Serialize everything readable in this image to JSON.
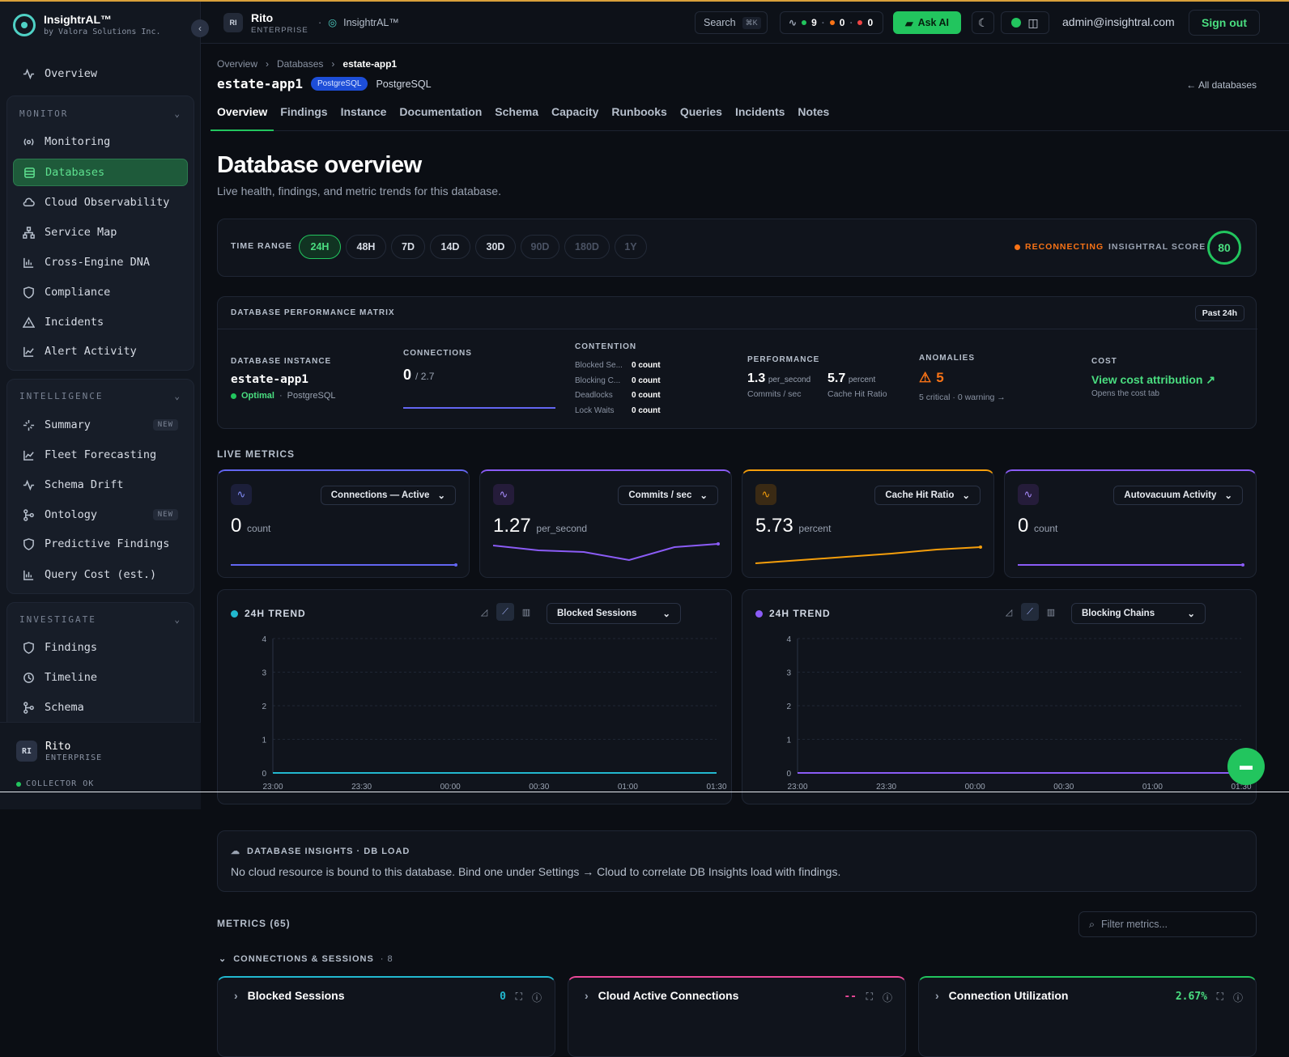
{
  "brand": {
    "name": "InsightrAL™",
    "tagline": "by Valora Solutions Inc."
  },
  "sidebar": {
    "overview": "Overview",
    "monitor": {
      "title": "MONITOR",
      "items": [
        "Monitoring",
        "Databases",
        "Cloud Observability",
        "Service Map",
        "Cross-Engine DNA",
        "Compliance",
        "Incidents",
        "Alert Activity"
      ]
    },
    "intelligence": {
      "title": "INTELLIGENCE",
      "items": [
        "Summary",
        "Fleet Forecasting",
        "Schema Drift",
        "Ontology",
        "Predictive Findings",
        "Query Cost (est.)"
      ],
      "new_badge": "NEW"
    },
    "investigate": {
      "title": "INVESTIGATE",
      "items": [
        "Findings",
        "Timeline",
        "Schema"
      ]
    },
    "user": {
      "initials": "RI",
      "name": "Rito",
      "plan": "ENTERPRISE",
      "collector": "COLLECTOR OK"
    }
  },
  "topbar": {
    "initials": "RI",
    "user": "Rito",
    "plan": "ENTERPRISE",
    "app": "InsightrAL™",
    "search": "Search",
    "search_kbd": "⌘K",
    "status": {
      "green": "9",
      "orange": "0",
      "red": "0"
    },
    "ask": "Ask AI",
    "email": "admin@insightral.com",
    "signout": "Sign out"
  },
  "breadcrumb": [
    "Overview",
    "Databases",
    "estate-app1"
  ],
  "db": {
    "name": "estate-app1",
    "engine_badge": "PostgreSQL",
    "engine": "PostgreSQL",
    "all_link": "← All databases"
  },
  "tabs": [
    "Overview",
    "Findings",
    "Instance",
    "Documentation",
    "Schema",
    "Capacity",
    "Runbooks",
    "Queries",
    "Incidents",
    "Notes"
  ],
  "page": {
    "title": "Database overview",
    "subtitle": "Live health, findings, and metric trends for this database."
  },
  "time_range": {
    "label": "TIME RANGE",
    "options": [
      "24H",
      "48H",
      "7D",
      "14D",
      "30D",
      "90D",
      "180D",
      "1Y"
    ],
    "selected": "24H",
    "disabled": [
      "90D",
      "180D",
      "1Y"
    ],
    "status": "RECONNECTING",
    "score_label": "INSIGHTRAL SCORE",
    "score": "80"
  },
  "matrix": {
    "title": "DATABASE PERFORMANCE MATRIX",
    "period": "Past 24h",
    "instance": {
      "label": "DATABASE INSTANCE",
      "name": "estate-app1",
      "status": "Optimal",
      "engine": "PostgreSQL"
    },
    "connections": {
      "label": "CONNECTIONS",
      "value": "0",
      "max": "/ 2.7"
    },
    "contention": {
      "label": "CONTENTION",
      "rows": [
        {
          "k": "Blocked Se...",
          "v": "0 count"
        },
        {
          "k": "Blocking C...",
          "v": "0 count"
        },
        {
          "k": "Deadlocks",
          "v": "0 count"
        },
        {
          "k": "Lock Waits",
          "v": "0 count"
        }
      ]
    },
    "performance": {
      "label": "PERFORMANCE",
      "a_val": "1.3",
      "a_unit": "per_second",
      "a_name": "Commits / sec",
      "b_val": "5.7",
      "b_unit": "percent",
      "b_name": "Cache Hit Ratio"
    },
    "anomalies": {
      "label": "ANOMALIES",
      "value": "5",
      "detail": "5 critical · 0 warning →"
    },
    "cost": {
      "label": "COST",
      "link": "View cost attribution ↗",
      "sub": "Opens the cost tab"
    }
  },
  "live": {
    "title": "LIVE METRICS",
    "cards": [
      {
        "select": "Connections — Active",
        "value": "0",
        "unit": "count",
        "color": "#6366f1"
      },
      {
        "select": "Commits / sec",
        "value": "1.27",
        "unit": "per_second",
        "color": "#8b5cf6"
      },
      {
        "select": "Cache Hit Ratio",
        "value": "5.73",
        "unit": "percent",
        "color": "#f59e0b"
      },
      {
        "select": "Autovacuum Activity",
        "value": "0",
        "unit": "count",
        "color": "#8b5cf6"
      }
    ]
  },
  "trends": [
    {
      "label": "24H TREND",
      "select": "Blocked Sessions",
      "color": "#22b8cf"
    },
    {
      "label": "24H TREND",
      "select": "Blocking Chains",
      "color": "#8b5cf6"
    }
  ],
  "chart_data": [
    {
      "type": "line",
      "title": "24H TREND",
      "series": [
        {
          "name": "Blocked Sessions",
          "values": [
            0,
            0,
            0,
            0,
            0,
            0
          ]
        }
      ],
      "x": [
        "23:00",
        "23:30",
        "00:00",
        "00:30",
        "01:00",
        "01:30"
      ],
      "ylim": [
        0,
        4
      ],
      "yticks": [
        "0",
        "1",
        "2",
        "3",
        "4"
      ]
    },
    {
      "type": "line",
      "title": "24H TREND",
      "series": [
        {
          "name": "Blocking Chains",
          "values": [
            0,
            0,
            0,
            0,
            0,
            0
          ]
        }
      ],
      "x": [
        "23:00",
        "23:30",
        "00:00",
        "00:30",
        "01:00",
        "01:30"
      ],
      "ylim": [
        0,
        4
      ],
      "yticks": [
        "0",
        "1",
        "2",
        "3",
        "4"
      ]
    }
  ],
  "insights": {
    "title": "DATABASE INSIGHTS · DB LOAD",
    "text": "No cloud resource is bound to this database. Bind one under Settings → Cloud to correlate DB Insights load with findings."
  },
  "metrics": {
    "title": "METRICS (65)",
    "filter_placeholder": "Filter metrics...",
    "section": "CONNECTIONS & SESSIONS",
    "section_count": "· 8",
    "cards": [
      {
        "title": "Blocked Sessions",
        "value": "0",
        "color": "#22b8cf"
      },
      {
        "title": "Cloud Active Connections",
        "value": "--",
        "color": "#ec4899"
      },
      {
        "title": "Connection Utilization",
        "value": "2.67%",
        "color": "#22c55e"
      }
    ]
  }
}
